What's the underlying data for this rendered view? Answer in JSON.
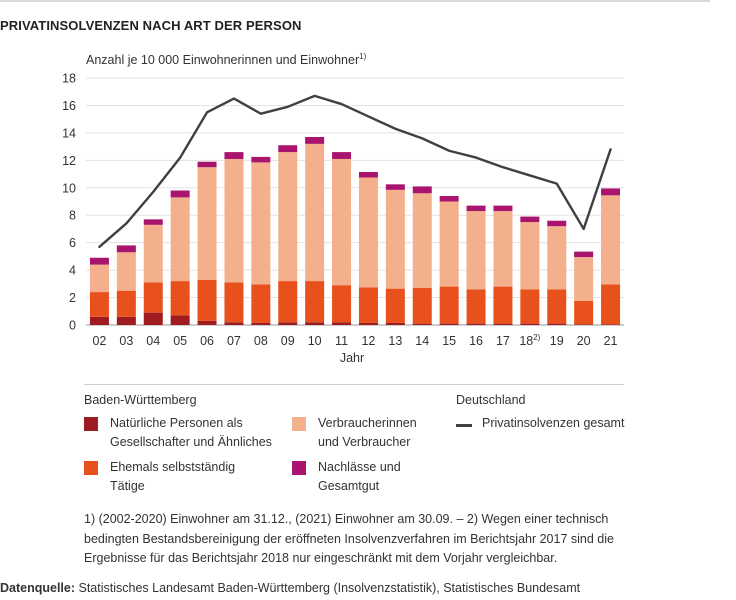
{
  "title": "PRIVATINSOLVENZEN NACH ART DER PERSON",
  "chart_data": {
    "type": "bar",
    "stacked": true,
    "ylabel": "Anzahl je 10 000 Einwohnerinnen und Einwohner",
    "ylabel_sup": "1)",
    "xlabel": "Jahr",
    "ylim": [
      0,
      18
    ],
    "yticks": [
      "0",
      "2",
      "4",
      "6",
      "8",
      "10",
      "12",
      "14",
      "16",
      "18"
    ],
    "grid": true,
    "categories": [
      "02",
      "03",
      "04",
      "05",
      "06",
      "07",
      "08",
      "09",
      "10",
      "11",
      "12",
      "13",
      "14",
      "15",
      "16",
      "17",
      "18",
      "19",
      "20",
      "21"
    ],
    "category_sups": [
      "",
      "",
      "",
      "",
      "",
      "",
      "",
      "",
      "",
      "",
      "",
      "",
      "",
      "",
      "",
      "",
      "2)",
      "",
      "",
      ""
    ],
    "series": [
      {
        "name": "Natürliche Personen als Gesellschafter und Ähnliches",
        "color": "#9e1b1f",
        "values": [
          0.6,
          0.6,
          0.9,
          0.7,
          0.3,
          0.2,
          0.15,
          0.2,
          0.2,
          0.2,
          0.15,
          0.15,
          0.1,
          0.1,
          0.1,
          0.1,
          0.1,
          0.1,
          0.05,
          0.05
        ]
      },
      {
        "name": "Ehemals selbstständig Tätige",
        "color": "#e8501c",
        "values": [
          1.8,
          1.9,
          2.2,
          2.5,
          3.0,
          2.9,
          2.8,
          3.0,
          3.0,
          2.7,
          2.6,
          2.5,
          2.6,
          2.7,
          2.5,
          2.7,
          2.5,
          2.5,
          1.7,
          2.9
        ]
      },
      {
        "name": "Verbraucherinnen und Verbraucher",
        "color": "#f4b08c",
        "values": [
          2.0,
          2.8,
          4.2,
          6.1,
          8.2,
          9.0,
          8.9,
          9.4,
          10.0,
          9.2,
          8.0,
          7.2,
          6.9,
          6.2,
          5.7,
          5.5,
          4.9,
          4.6,
          3.2,
          6.5
        ]
      },
      {
        "name": "Nachlässe und Gesamtgut",
        "color": "#a8146e",
        "values": [
          0.5,
          0.5,
          0.4,
          0.5,
          0.4,
          0.5,
          0.4,
          0.5,
          0.5,
          0.5,
          0.4,
          0.4,
          0.5,
          0.4,
          0.4,
          0.4,
          0.4,
          0.4,
          0.4,
          0.5
        ]
      }
    ],
    "line": {
      "name": "Privatinsolvenzen gesamt",
      "color": "#404040",
      "values": [
        5.7,
        7.4,
        9.7,
        12.2,
        15.5,
        16.5,
        15.4,
        15.9,
        16.7,
        16.1,
        15.2,
        14.3,
        13.6,
        12.7,
        12.2,
        11.5,
        10.9,
        10.3,
        7.0,
        12.8
      ]
    }
  },
  "legend": {
    "group_bw": "Baden-Württemberg",
    "group_de": "Deutschland",
    "items": [
      {
        "label": "Natürliche Personen als\nGesellschafter und Ähnliches",
        "color": "#9e1b1f"
      },
      {
        "label": "Verbraucherinnen\nund Verbraucher",
        "color": "#f4b08c"
      },
      {
        "label": "Ehemals selbstständig\nTätige",
        "color": "#e8501c"
      },
      {
        "label": "Nachlässe und\nGesamtgut",
        "color": "#a8146e"
      }
    ],
    "line_label": "Privatinsolvenzen gesamt"
  },
  "footnote": "1) (2002-2020) Einwohner am 31.12., (2021) Einwohner am 30.09. – 2) Wegen einer technisch bedingten Bestandsbereinigung der eröffneten Insolvenzverfahren im Berichtsjahr 2017 sind die Ergebnisse für das Berichtsjahr 2018 nur eingeschränkt mit dem Vorjahr vergleichbar.",
  "source": {
    "label": "Datenquelle:",
    "text": " Statistisches Landesamt Baden-Württemberg (Insolvenzstatistik), Statistisches Bundesamt"
  }
}
